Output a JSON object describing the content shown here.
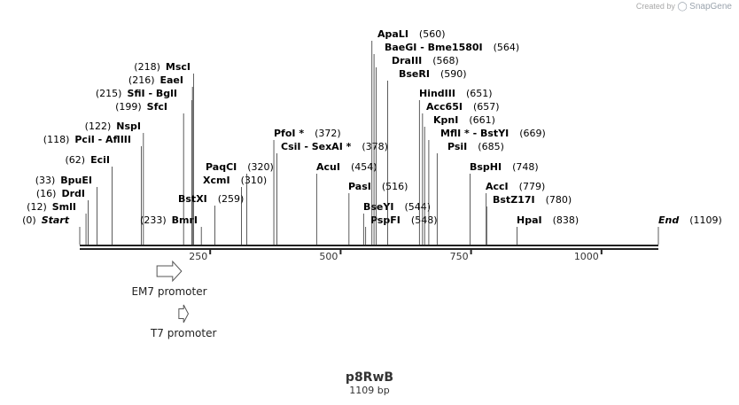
{
  "branding": {
    "prefix": "Created by",
    "name": "SnapGene"
  },
  "map": {
    "name": "p8RwB",
    "length_text": "1109 bp",
    "length_bp": 1109
  },
  "axis": {
    "start_bp": 0,
    "end_bp": 1109,
    "ticks": [
      250,
      500,
      750,
      1000
    ]
  },
  "sites": [
    {
      "name": "Start",
      "pos": 0,
      "display_pos": "(0)",
      "kind": "boundary",
      "side": "right"
    },
    {
      "name": "SmlI",
      "pos": 12,
      "display_pos": "(12)",
      "side": "right"
    },
    {
      "name": "DrdI",
      "pos": 16,
      "display_pos": "(16)",
      "side": "right"
    },
    {
      "name": "BpuEI",
      "pos": 33,
      "display_pos": "(33)",
      "side": "right"
    },
    {
      "name": "EciI",
      "pos": 62,
      "display_pos": "(62)",
      "side": "right"
    },
    {
      "name": "PciI  -  AflIII",
      "pos": 118,
      "display_pos": "(118)",
      "side": "right"
    },
    {
      "name": "NspI",
      "pos": 122,
      "display_pos": "(122)",
      "side": "right"
    },
    {
      "name": "BmrI",
      "pos": 233,
      "display_pos": "(233)",
      "side": "right"
    },
    {
      "name": "SfcI",
      "pos": 199,
      "display_pos": "(199)",
      "side": "right"
    },
    {
      "name": "SfiI  -  BglI",
      "pos": 215,
      "display_pos": "(215)",
      "side": "right"
    },
    {
      "name": "EaeI",
      "pos": 216,
      "display_pos": "(216)",
      "side": "right"
    },
    {
      "name": "MscI",
      "pos": 218,
      "display_pos": "(218)",
      "side": "right"
    },
    {
      "name": "BstXI",
      "pos": 259,
      "display_pos": "(259)",
      "side": "left"
    },
    {
      "name": "XcmI",
      "pos": 310,
      "display_pos": "(310)",
      "side": "left"
    },
    {
      "name": "PaqCI",
      "pos": 320,
      "display_pos": "(320)",
      "side": "left"
    },
    {
      "name": "PfoI *",
      "pos": 372,
      "display_pos": "(372)",
      "side": "left"
    },
    {
      "name": "CsiI  -  SexAI *",
      "pos": 378,
      "display_pos": "(378)",
      "side": "left"
    },
    {
      "name": "AcuI",
      "pos": 454,
      "display_pos": "(454)",
      "side": "left"
    },
    {
      "name": "PasI",
      "pos": 516,
      "display_pos": "(516)",
      "side": "left"
    },
    {
      "name": "BseYI",
      "pos": 544,
      "display_pos": "(544)",
      "side": "left"
    },
    {
      "name": "PspFI",
      "pos": 548,
      "display_pos": "(548)",
      "side": "left"
    },
    {
      "name": "ApaLI",
      "pos": 560,
      "display_pos": "(560)",
      "side": "left"
    },
    {
      "name": "BaeGI  -  Bme1580I",
      "pos": 564,
      "display_pos": "(564)",
      "side": "left"
    },
    {
      "name": "DraIII",
      "pos": 568,
      "display_pos": "(568)",
      "side": "left"
    },
    {
      "name": "BseRI",
      "pos": 590,
      "display_pos": "(590)",
      "side": "left"
    },
    {
      "name": "HindIII",
      "pos": 651,
      "display_pos": "(651)",
      "side": "left"
    },
    {
      "name": "Acc65I",
      "pos": 657,
      "display_pos": "(657)",
      "side": "left"
    },
    {
      "name": "KpnI",
      "pos": 661,
      "display_pos": "(661)",
      "side": "left"
    },
    {
      "name": "MflI *  -  BstYI",
      "pos": 669,
      "display_pos": "(669)",
      "side": "left"
    },
    {
      "name": "PsiI",
      "pos": 685,
      "display_pos": "(685)",
      "side": "left"
    },
    {
      "name": "BspHI",
      "pos": 748,
      "display_pos": "(748)",
      "side": "left"
    },
    {
      "name": "AccI",
      "pos": 779,
      "display_pos": "(779)",
      "side": "left"
    },
    {
      "name": "BstZ17I",
      "pos": 780,
      "display_pos": "(780)",
      "side": "left"
    },
    {
      "name": "HpaI",
      "pos": 838,
      "display_pos": "(838)",
      "side": "left"
    },
    {
      "name": "End",
      "pos": 1109,
      "display_pos": "(1109)",
      "kind": "boundary",
      "side": "left"
    }
  ],
  "features": [
    {
      "name": "EM7 promoter",
      "start_bp": 148,
      "end_bp": 195
    },
    {
      "name": "T7 promoter",
      "start_bp": 190,
      "end_bp": 208
    }
  ],
  "colors": {
    "line": "#222222",
    "text": "#000000",
    "feature_stroke": "#555555",
    "feature_fill": "#ffffff"
  }
}
